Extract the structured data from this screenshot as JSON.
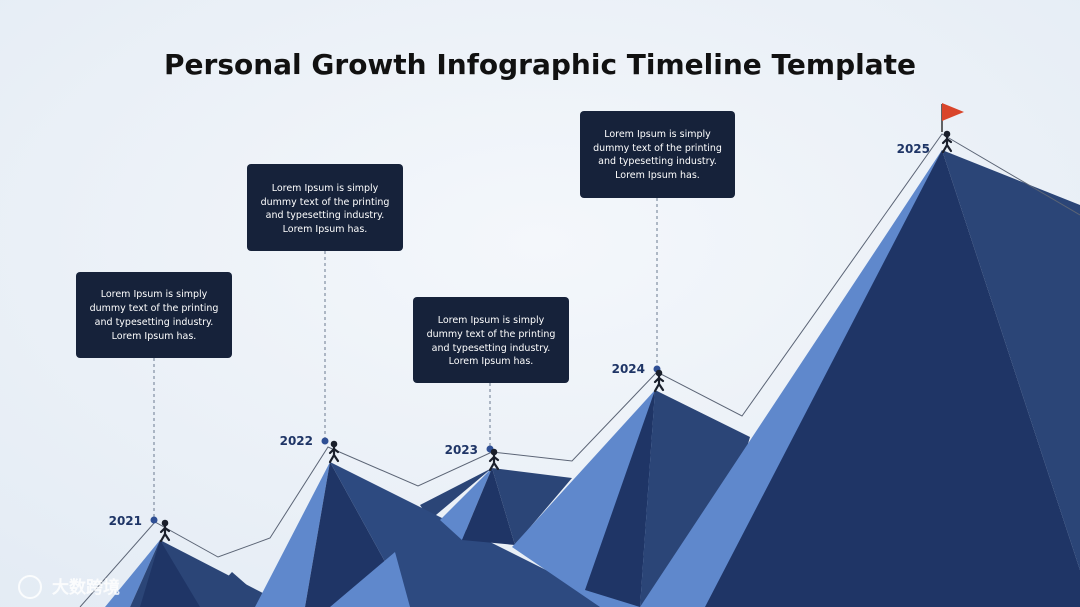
{
  "title": "Personal Growth Infographic Timeline Template",
  "years": [
    "2021",
    "2022",
    "2023",
    "2024",
    "2025"
  ],
  "notes": [
    {
      "lines": [
        "Lorem Ipsum is simply",
        "dummy text of the printing",
        "and typesetting industry.",
        "Lorem Ipsum has."
      ]
    },
    {
      "lines": [
        "Lorem Ipsum is simply",
        "dummy text of the printing",
        "and typesetting industry.",
        "Lorem Ipsum has."
      ]
    },
    {
      "lines": [
        "Lorem Ipsum is simply",
        "dummy text of the printing",
        "and typesetting industry.",
        "Lorem Ipsum has."
      ]
    },
    {
      "lines": [
        "Lorem Ipsum is simply",
        "dummy text of the printing",
        "and typesetting industry.",
        "Lorem Ipsum has."
      ]
    }
  ],
  "watermark": "大数跨境"
}
